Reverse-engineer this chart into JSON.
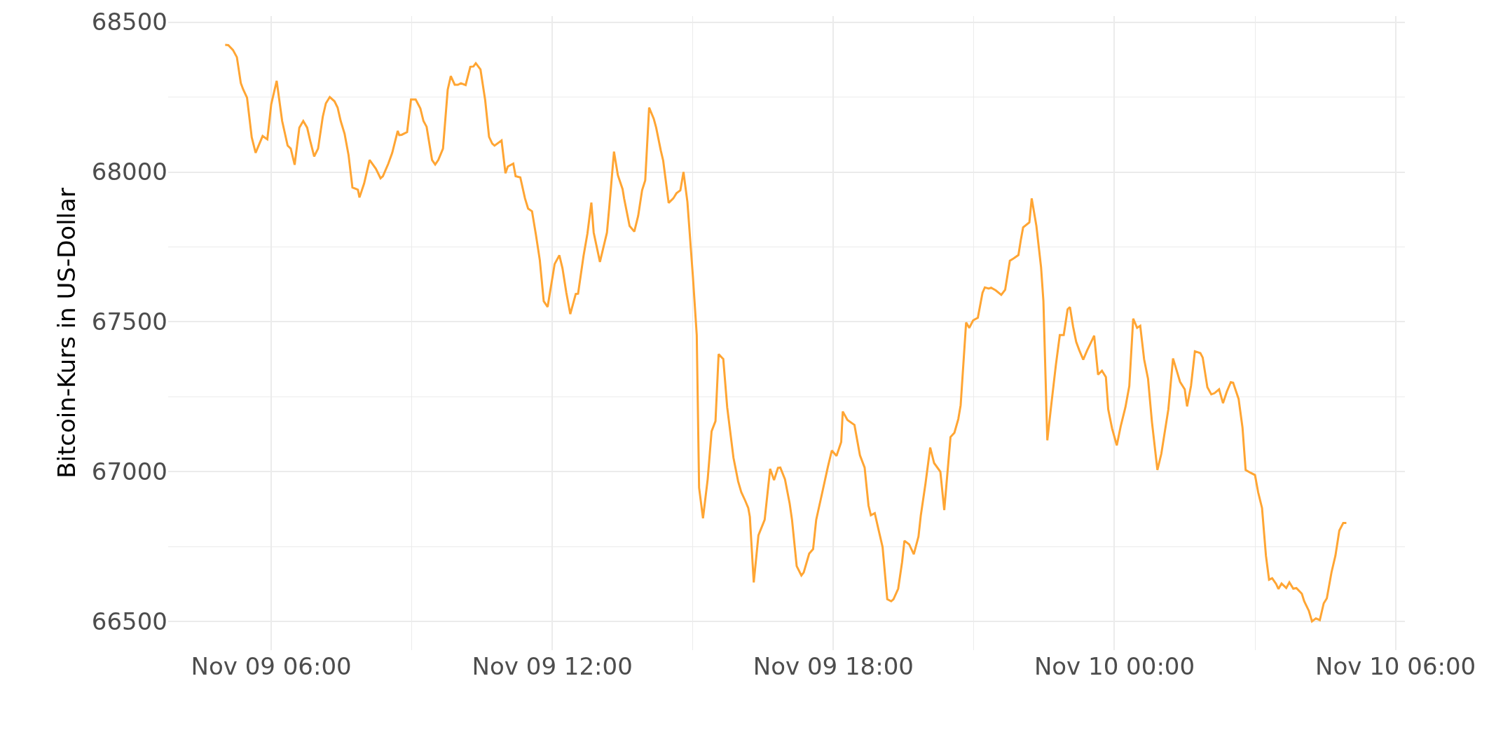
{
  "chart_data": {
    "type": "line",
    "ylabel": "Bitcoin-Kurs in US-Dollar",
    "color": "#ffa533",
    "x": [
      "--11-09T05:01",
      "--11-09T05:05",
      "--11-09T05:11",
      "--11-09T05:16",
      "--11-09T05:21",
      "--11-09T05:24",
      "--11-09T05:29",
      "--11-09T05:35",
      "--11-09T05:40",
      "--11-09T05:49",
      "--11-09T05:55",
      "--11-09T06:00",
      "--11-09T06:07",
      "--11-09T06:14",
      "--11-09T06:21",
      "--11-09T06:25",
      "--11-09T06:30",
      "--11-09T06:36",
      "--11-09T06:41",
      "--11-09T06:46",
      "--11-09T06:50",
      "--11-09T06:55",
      "--11-09T07:00",
      "--11-09T07:06",
      "--11-09T07:10",
      "--11-09T07:15",
      "--11-09T07:21",
      "--11-09T07:25",
      "--11-09T07:29",
      "--11-09T07:34",
      "--11-09T07:39",
      "--11-09T07:44",
      "--11-09T07:51",
      "--11-09T07:53",
      "--11-09T07:59",
      "--11-09T08:06",
      "--11-09T08:14",
      "--11-09T08:20",
      "--11-09T08:23",
      "--11-09T08:30",
      "--11-09T08:35",
      "--11-09T08:42",
      "--11-09T08:44",
      "--11-09T08:47",
      "--11-09T08:54",
      "--11-09T08:59",
      "--11-09T09:05",
      "--11-09T09:11",
      "--11-09T09:15",
      "--11-09T09:19",
      "--11-09T09:26",
      "--11-09T09:30",
      "--11-09T09:34",
      "--11-09T09:40",
      "--11-09T09:46",
      "--11-09T09:50",
      "--11-09T09:55",
      "--11-09T09:59",
      "--11-09T10:03",
      "--11-09T10:09",
      "--11-09T10:15",
      "--11-09T10:19",
      "--11-09T10:22",
      "--11-09T10:28",
      "--11-09T10:34",
      "--11-09T10:39",
      "--11-09T10:43",
      "--11-09T10:46",
      "--11-09T10:55",
      "--11-09T11:00",
      "--11-09T11:03",
      "--11-09T11:10",
      "--11-09T11:13",
      "--11-09T11:19",
      "--11-09T11:25",
      "--11-09T11:29",
      "--11-09T11:34",
      "--11-09T11:39",
      "--11-09T11:44",
      "--11-09T11:49",
      "--11-09T11:54",
      "--11-09T12:03",
      "--11-09T12:09",
      "--11-09T12:13",
      "--11-09T12:18",
      "--11-09T12:23",
      "--11-09T12:30",
      "--11-09T12:33",
      "--11-09T12:40",
      "--11-09T12:45",
      "--11-09T12:50",
      "--11-09T12:53",
      "--11-09T13:01",
      "--11-09T13:10",
      "--11-09T13:13",
      "--11-09T13:19",
      "--11-09T13:24",
      "--11-09T13:30",
      "--11-09T13:32",
      "--11-09T13:39",
      "--11-09T13:45",
      "--11-09T13:50",
      "--11-09T13:55",
      "--11-09T13:59",
      "--11-09T14:04",
      "--11-09T14:10",
      "--11-09T14:13",
      "--11-09T14:19",
      "--11-09T14:22",
      "--11-09T14:29",
      "--11-09T14:35",
      "--11-09T14:39",
      "--11-09T14:44",
      "--11-09T14:48",
      "--11-09T14:53",
      "--11-09T15:00",
      "--11-09T15:05",
      "--11-09T15:08",
      "--11-09T15:13",
      "--11-09T15:19",
      "--11-09T15:24",
      "--11-09T15:29",
      "--11-09T15:33",
      "--11-09T15:39",
      "--11-09T15:44",
      "--11-09T15:52",
      "--11-09T15:58",
      "--11-09T16:02",
      "--11-09T16:07",
      "--11-09T16:11",
      "--11-09T16:13",
      "--11-09T16:18",
      "--11-09T16:24",
      "--11-09T16:32",
      "--11-09T16:39",
      "--11-09T16:44",
      "--11-09T16:49",
      "--11-09T16:52",
      "--11-09T16:58",
      "--11-09T17:04",
      "--11-09T17:07",
      "--11-09T17:13",
      "--11-09T17:19",
      "--11-09T17:22",
      "--11-09T17:29",
      "--11-09T17:34",
      "--11-09T17:38",
      "--11-09T17:45",
      "--11-09T17:53",
      "--11-09T17:58",
      "--11-09T18:04",
      "--11-09T18:10",
      "--11-09T18:12",
      "--11-09T18:18",
      "--11-09T18:27",
      "--11-09T18:34",
      "--11-09T18:40",
      "--11-09T18:45",
      "--11-09T18:48",
      "--11-09T18:53",
      "--11-09T18:58",
      "--11-09T19:03",
      "--11-09T19:09",
      "--11-09T19:14",
      "--11-09T19:17",
      "--11-09T19:23",
      "--11-09T19:28",
      "--11-09T19:31",
      "--11-09T19:37",
      "--11-09T19:43",
      "--11-09T19:49",
      "--11-09T19:52",
      "--11-09T19:58",
      "--11-09T20:04",
      "--11-09T20:09",
      "--11-09T20:17",
      "--11-09T20:22",
      "--11-09T20:30",
      "--11-09T20:35",
      "--11-09T20:40",
      "--11-09T20:43",
      "--11-09T20:50",
      "--11-09T20:54",
      "--11-09T20:59",
      "--11-09T21:05",
      "--11-09T21:11",
      "--11-09T21:14",
      "--11-09T21:19",
      "--11-09T21:22",
      "--11-09T21:28",
      "--11-09T21:35",
      "--11-09T21:40",
      "--11-09T21:46",
      "--11-09T21:51",
      "--11-09T21:57",
      "--11-09T22:00",
      "--11-09T22:03",
      "--11-09T22:11",
      "--11-09T22:14",
      "--11-09T22:20",
      "--11-09T22:26",
      "--11-09T22:29",
      "--11-09T22:34",
      "--11-09T22:39",
      "--11-09T22:45",
      "--11-09T22:50",
      "--11-09T22:55",
      "--11-09T23:00",
      "--11-09T23:03",
      "--11-09T23:07",
      "--11-09T23:11",
      "--11-09T23:15",
      "--11-09T23:20",
      "--11-09T23:25",
      "--11-09T23:30",
      "--11-09T23:34",
      "--11-09T23:39",
      "--11-09T23:44",
      "--11-09T23:49",
      "--11-09T23:52",
      "--11-09T23:57",
      "--11-10T00:03",
      "--11-10T00:08",
      "--11-10T00:14",
      "--11-10T00:19",
      "--11-10T00:24",
      "--11-10T00:29",
      "--11-10T00:33",
      "--11-10T00:38",
      "--11-10T00:43",
      "--11-10T00:48",
      "--11-10T00:55",
      "--11-10T01:00",
      "--11-10T01:09",
      "--11-10T01:15",
      "--11-10T01:20",
      "--11-10T01:24",
      "--11-10T01:30",
      "--11-10T01:33",
      "--11-10T01:38",
      "--11-10T01:43",
      "--11-10T01:50",
      "--11-10T01:53",
      "--11-10T01:59",
      "--11-10T02:04",
      "--11-10T02:08",
      "--11-10T02:14",
      "--11-10T02:19",
      "--11-10T02:24",
      "--11-10T02:29",
      "--11-10T02:32",
      "--11-10T02:39",
      "--11-10T02:44",
      "--11-10T02:48",
      "--11-10T02:54",
      "--11-10T03:00",
      "--11-10T03:04",
      "--11-10T03:09",
      "--11-10T03:14",
      "--11-10T03:18",
      "--11-10T03:22",
      "--11-10T03:27",
      "--11-10T03:30",
      "--11-10T03:34",
      "--11-10T03:40",
      "--11-10T03:44",
      "--11-10T03:49",
      "--11-10T03:53",
      "--11-10T04:00",
      "--11-10T04:03",
      "--11-10T04:09",
      "--11-10T04:13",
      "--11-10T04:18",
      "--11-10T04:23",
      "--11-10T04:28",
      "--11-10T04:32",
      "--11-10T04:38",
      "--11-10T04:43",
      "--11-10T04:48",
      "--11-10T04:53",
      "--11-10T04:57"
    ],
    "values": [
      68424,
      68423,
      68407,
      68383,
      68297,
      68276,
      68248,
      68116,
      68064,
      68120,
      68109,
      68226,
      68304,
      68170,
      68088,
      68078,
      68024,
      68148,
      68170,
      68148,
      68103,
      68052,
      68078,
      68184,
      68229,
      68250,
      68236,
      68215,
      68170,
      68127,
      68057,
      67948,
      67941,
      67915,
      67962,
      68040,
      68011,
      67979,
      67986,
      68028,
      68064,
      68137,
      68123,
      68124,
      68133,
      68242,
      68242,
      68212,
      68170,
      68151,
      68040,
      68025,
      68040,
      68078,
      68274,
      68320,
      68291,
      68291,
      68296,
      68290,
      68351,
      68352,
      68363,
      68342,
      68240,
      68117,
      68095,
      68088,
      68105,
      67996,
      68018,
      68028,
      67986,
      67982,
      67912,
      67878,
      67869,
      67791,
      67706,
      67569,
      67550,
      67693,
      67722,
      67679,
      67597,
      67526,
      67593,
      67594,
      67720,
      67795,
      67898,
      67798,
      67700,
      67798,
      67884,
      68068,
      67989,
      67943,
      67911,
      67820,
      67801,
      67854,
      67939,
      67972,
      68215,
      68177,
      68148,
      68071,
      68038,
      67897,
      67912,
      67929,
      67939,
      68000,
      67901,
      67654,
      67456,
      66947,
      66845,
      66975,
      67135,
      67169,
      67392,
      67376,
      67215,
      67047,
      66968,
      66932,
      66904,
      66879,
      66850,
      66631,
      66788,
      66840,
      67010,
      66972,
      67013,
      67014,
      66975,
      66894,
      66840,
      66685,
      66654,
      66664,
      66727,
      66742,
      66840,
      66922,
      67017,
      67071,
      67053,
      67099,
      67201,
      67173,
      67156,
      67055,
      67014,
      66887,
      66855,
      66862,
      66805,
      66749,
      66575,
      66568,
      66575,
      66610,
      66699,
      66770,
      66758,
      66725,
      66784,
      66855,
      66961,
      67081,
      67029,
      67000,
      66872,
      67116,
      67130,
      67176,
      67222,
      67498,
      67480,
      67505,
      67514,
      67597,
      67615,
      67611,
      67614,
      67605,
      67590,
      67607,
      67704,
      67712,
      67723,
      67772,
      67815,
      67832,
      67912,
      67820,
      67682,
      67569,
      67105,
      67222,
      67357,
      67456,
      67456,
      67542,
      67549,
      67484,
      67433,
      67405,
      67374,
      67405,
      67432,
      67454,
      67324,
      67337,
      67316,
      67208,
      67144,
      67088,
      67152,
      67215,
      67286,
      67511,
      67480,
      67487,
      67375,
      67310,
      67166,
      67006,
      67060,
      67208,
      67378,
      67335,
      67300,
      67275,
      67218,
      67286,
      67402,
      67396,
      67381,
      67282,
      67258,
      67262,
      67275,
      67229,
      67268,
      67299,
      67297,
      67243,
      67147,
      67006,
      66997,
      66989,
      66932,
      66879,
      66720,
      66640,
      66645,
      66626,
      66609,
      66627,
      66612,
      66631,
      66610,
      66612,
      66593,
      66568,
      66536,
      66501,
      66511,
      66505,
      66561,
      66578,
      66665,
      66720,
      66804,
      66829,
      66829
    ],
    "xlim": [
      "--11-09T03:48",
      "--11-10T06:12"
    ],
    "xticks": [
      {
        "value": "--11-09T06:00",
        "label": "Nov 09 06:00"
      },
      {
        "value": "--11-09T09:00",
        "label": null
      },
      {
        "value": "--11-09T12:00",
        "label": "Nov 09 12:00"
      },
      {
        "value": "--11-09T15:00",
        "label": null
      },
      {
        "value": "--11-09T18:00",
        "label": "Nov 09 18:00"
      },
      {
        "value": "--11-09T21:00",
        "label": null
      },
      {
        "value": "--11-10T00:00",
        "label": "Nov 10 00:00"
      },
      {
        "value": "--11-10T03:00",
        "label": null
      },
      {
        "value": "--11-10T06:00",
        "label": "Nov 10 06:00"
      }
    ],
    "ylim": [
      66405,
      68520
    ],
    "yticks": [
      66500,
      {
        "value": 66750,
        "label": null
      },
      67000,
      {
        "value": 67250,
        "label": null
      },
      67500,
      {
        "value": 67750,
        "label": null
      },
      68000,
      {
        "value": 68250,
        "label": null
      },
      68500
    ],
    "grid": true
  }
}
